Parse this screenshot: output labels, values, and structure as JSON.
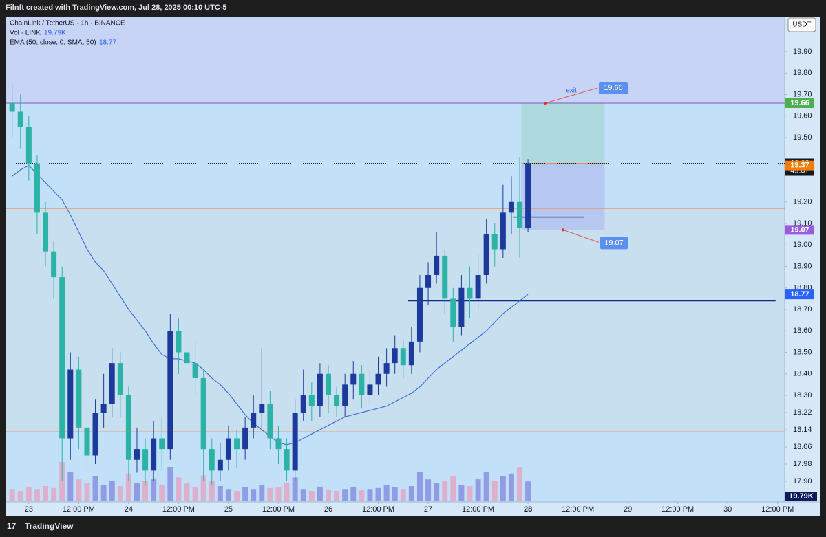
{
  "header": "Filnft created with TradingView.com, Jul 28, 2025 00:10 UTC-5",
  "footer": "TradingView",
  "chart_data": {
    "type": "candlestick",
    "symbol": "ChainLink / TetherUS · 1h · BINANCE",
    "volume_name": "Vol · LINK",
    "volume_label": "19.79K",
    "ema_name": "EMA (50, close, 0, SMA, 50)",
    "currency": "USDT",
    "up_color": "#1b3a9c",
    "down_color": "#2bb3a6",
    "ema_color": "#3d6fe0",
    "xlim": [
      -5.6,
      181.7
    ],
    "ylim": [
      17.804,
      20.06
    ],
    "yticks": [
      {
        "value": 19.9,
        "label": "19.90"
      },
      {
        "value": 19.8,
        "label": "19.80"
      },
      {
        "value": 19.7,
        "label": "19.70"
      },
      {
        "value": 19.6,
        "label": "19.60"
      },
      {
        "value": 19.5,
        "label": "19.50"
      },
      {
        "value": 19.2,
        "label": "19.20"
      },
      {
        "value": 19.1,
        "label": "19.10"
      },
      {
        "value": 19,
        "label": "19.00"
      },
      {
        "value": 18.9,
        "label": "18.90"
      },
      {
        "value": 18.8,
        "label": "18.80"
      },
      {
        "value": 18.7,
        "label": "18.70"
      },
      {
        "value": 18.6,
        "label": "18.60"
      },
      {
        "value": 18.5,
        "label": "18.50"
      },
      {
        "value": 18.4,
        "label": "18.40"
      },
      {
        "value": 18.3,
        "label": "18.30"
      },
      18.22,
      18.14,
      18.06,
      17.98,
      {
        "value": 17.9,
        "label": "17.90"
      }
    ],
    "xticks": [
      {
        "value": 0,
        "label": "23"
      },
      {
        "value": 12,
        "label": "12:00 PM"
      },
      {
        "value": 24,
        "label": "24"
      },
      {
        "value": 36,
        "label": "12:00 PM"
      },
      {
        "value": 48,
        "label": "25"
      },
      {
        "value": 60,
        "label": "12:00 PM"
      },
      {
        "value": 72,
        "label": "26"
      },
      {
        "value": 84,
        "label": "12:00 PM"
      },
      {
        "value": 96,
        "label": "27"
      },
      {
        "value": 108,
        "label": "12:00 PM"
      },
      {
        "value": 120,
        "label": "28"
      },
      {
        "value": 132,
        "label": "12:00 PM"
      },
      {
        "value": 144,
        "label": "29"
      },
      {
        "value": 156,
        "label": "12:00 PM"
      },
      {
        "value": 168,
        "label": "30"
      },
      {
        "value": 180,
        "label": "12:00 PM"
      }
    ],
    "x": [
      -4,
      -2,
      0,
      2,
      4,
      6,
      8,
      10,
      12,
      14,
      16,
      18,
      20,
      22,
      24,
      26,
      28,
      30,
      32,
      34,
      36,
      38,
      40,
      42,
      44,
      46,
      48,
      50,
      52,
      54,
      56,
      58,
      60,
      62,
      64,
      66,
      68,
      70,
      72,
      74,
      76,
      78,
      80,
      82,
      84,
      86,
      88,
      90,
      92,
      94,
      96,
      98,
      100,
      102,
      104,
      106,
      108,
      110,
      112,
      114,
      116,
      118,
      120
    ],
    "open": [
      19.66,
      19.62,
      19.55,
      19.38,
      19.15,
      18.97,
      18.85,
      18.1,
      18.42,
      18.15,
      18.02,
      18.22,
      18.26,
      18.45,
      18.3,
      18.0,
      18.05,
      17.95,
      18.1,
      18.05,
      18.6,
      18.5,
      18.45,
      18.38,
      18.05,
      17.95,
      18.0,
      18.1,
      18.05,
      18.15,
      18.22,
      18.26,
      18.1,
      18.05,
      17.95,
      18.22,
      18.3,
      18.25,
      18.4,
      18.3,
      18.25,
      18.35,
      18.4,
      18.3,
      18.35,
      18.4,
      18.45,
      18.52,
      18.44,
      18.55,
      18.8,
      18.86,
      18.95,
      18.75,
      18.62,
      18.8,
      18.75,
      18.86,
      19.05,
      18.98,
      19.15,
      19.2,
      19.08
    ],
    "high": [
      19.75,
      19.7,
      19.6,
      19.42,
      19.2,
      19.02,
      18.9,
      18.5,
      18.48,
      18.22,
      18.28,
      18.4,
      18.52,
      18.5,
      18.34,
      18.15,
      18.1,
      18.18,
      18.2,
      18.68,
      18.66,
      18.62,
      18.55,
      18.42,
      18.1,
      18.08,
      18.16,
      18.14,
      18.2,
      18.3,
      18.52,
      18.32,
      18.16,
      18.1,
      18.28,
      18.42,
      18.36,
      18.45,
      18.44,
      18.34,
      18.4,
      18.46,
      18.44,
      18.42,
      18.48,
      18.52,
      18.58,
      18.56,
      18.62,
      18.86,
      18.92,
      19.06,
      18.98,
      18.8,
      18.86,
      18.9,
      18.96,
      19.12,
      19.1,
      19.28,
      19.32,
      19.41,
      19.4
    ],
    "low": [
      19.5,
      19.45,
      19.3,
      19.05,
      18.9,
      18.75,
      17.9,
      18.0,
      18.05,
      17.95,
      17.98,
      18.15,
      18.2,
      18.2,
      17.9,
      17.94,
      17.88,
      17.9,
      17.95,
      18.0,
      18.4,
      18.35,
      18.3,
      17.9,
      17.88,
      17.9,
      17.95,
      17.96,
      18.0,
      18.1,
      18.15,
      18.05,
      17.98,
      17.9,
      17.9,
      18.18,
      18.18,
      18.2,
      18.22,
      18.2,
      18.2,
      18.28,
      18.24,
      18.26,
      18.3,
      18.34,
      18.4,
      18.38,
      18.4,
      18.5,
      18.72,
      18.82,
      18.68,
      18.55,
      18.58,
      18.66,
      18.7,
      18.82,
      18.9,
      18.94,
      19.05,
      18.94,
      19.06
    ],
    "close": [
      19.62,
      19.55,
      19.38,
      19.15,
      18.97,
      18.85,
      18.1,
      18.42,
      18.15,
      18.02,
      18.22,
      18.26,
      18.45,
      18.3,
      18.0,
      18.05,
      17.95,
      18.1,
      18.05,
      18.6,
      18.5,
      18.45,
      18.38,
      18.05,
      17.95,
      18.0,
      18.1,
      18.05,
      18.15,
      18.22,
      18.26,
      18.1,
      18.05,
      17.95,
      18.22,
      18.3,
      18.25,
      18.4,
      18.3,
      18.25,
      18.35,
      18.4,
      18.3,
      18.35,
      18.4,
      18.45,
      18.52,
      18.44,
      18.55,
      18.8,
      18.86,
      18.95,
      18.75,
      18.62,
      18.8,
      18.75,
      18.86,
      19.05,
      18.98,
      19.15,
      19.2,
      19.08,
      19.38
    ],
    "volume": [
      12,
      10,
      14,
      12,
      15,
      13,
      40,
      30,
      22,
      18,
      25,
      16,
      20,
      15,
      28,
      18,
      20,
      22,
      16,
      35,
      24,
      18,
      14,
      26,
      20,
      15,
      12,
      10,
      14,
      12,
      16,
      13,
      14,
      18,
      24,
      12,
      10,
      14,
      11,
      10,
      12,
      14,
      11,
      12,
      13,
      16,
      14,
      12,
      15,
      30,
      22,
      18,
      20,
      25,
      16,
      15,
      22,
      30,
      20,
      25,
      28,
      35,
      19.79
    ],
    "ema": [
      19.32,
      19.35,
      19.37,
      19.33,
      19.29,
      19.25,
      19.21,
      19.14,
      19.06,
      18.98,
      18.92,
      18.88,
      18.82,
      18.76,
      18.7,
      18.65,
      18.6,
      18.54,
      18.49,
      18.47,
      18.47,
      18.46,
      18.45,
      18.42,
      18.38,
      18.35,
      18.31,
      18.26,
      18.21,
      18.17,
      18.14,
      18.11,
      18.08,
      18.07,
      18.08,
      18.1,
      18.12,
      18.14,
      18.16,
      18.18,
      18.2,
      18.21,
      18.22,
      18.23,
      18.24,
      18.25,
      18.27,
      18.29,
      18.31,
      18.34,
      18.38,
      18.42,
      18.45,
      18.48,
      18.51,
      18.54,
      18.57,
      18.6,
      18.64,
      18.68,
      18.71,
      18.74,
      18.77
    ],
    "lines": [
      {
        "value": 19.66,
        "color": "#7e57c2"
      },
      {
        "value": 19.17,
        "color": "#f08a5d"
      },
      {
        "value": 18.13,
        "color": "#f08a5d"
      },
      {
        "value": 18.74,
        "color": "#0d2a8c",
        "x_start": 91.2,
        "x_end": 179.5
      },
      {
        "value": 19.13,
        "color": "#1b3a9c",
        "x_start": 116.4,
        "x_end": 133.4
      }
    ],
    "current_price": 19.38,
    "countdown": "49:07",
    "badges": [
      {
        "value": 19.66,
        "color": "#4caf50"
      },
      {
        "value": 19.37,
        "color": "#f57c00"
      },
      {
        "value": 19.07,
        "color": "#9c5ce0"
      },
      {
        "value": 18.77,
        "color": "#2962ff"
      }
    ],
    "position": {
      "target": 19.66,
      "entry": 19.38,
      "stop": 19.07,
      "x_start": 118.4,
      "x_end": 138.4,
      "annotation": "exit"
    }
  }
}
